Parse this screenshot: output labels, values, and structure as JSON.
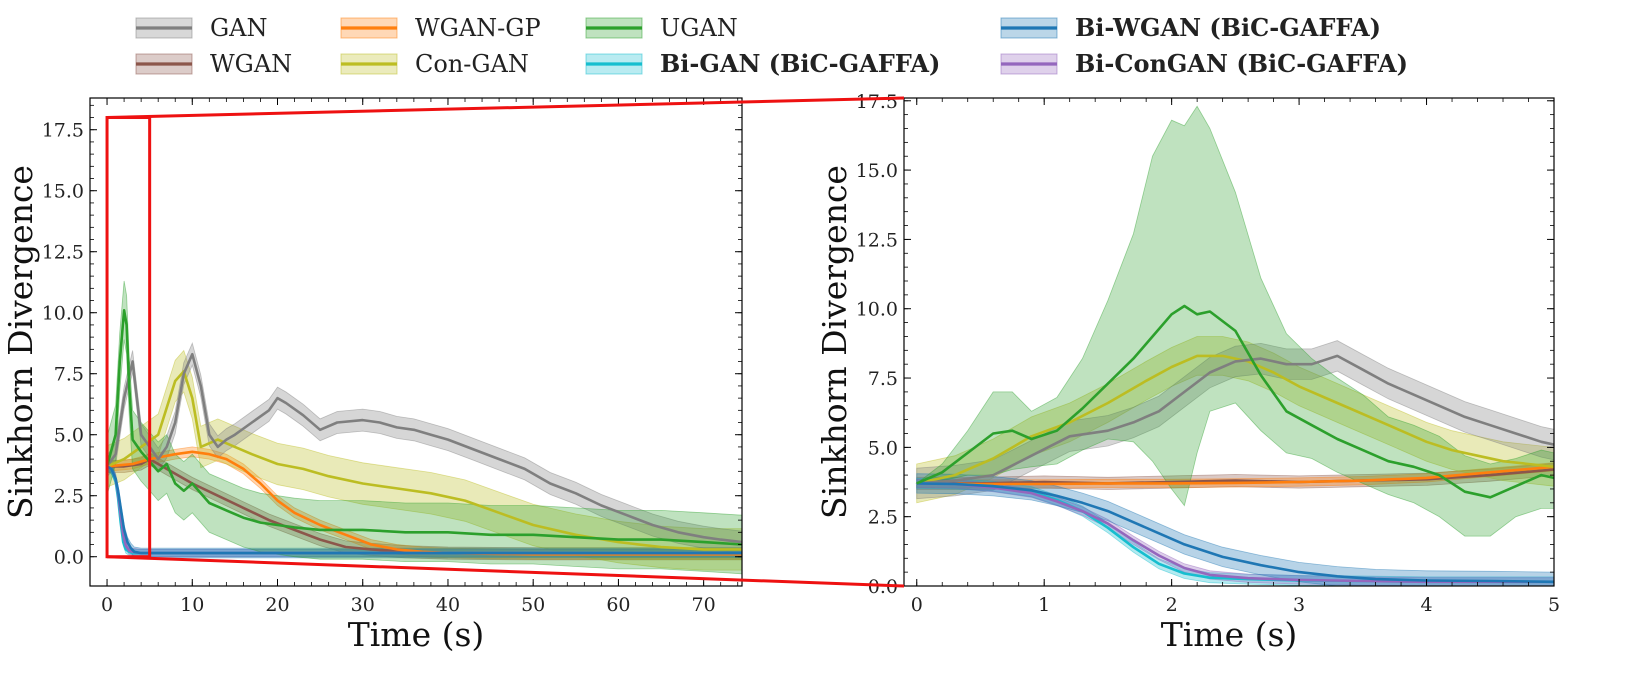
{
  "chart_data": {
    "type": "line",
    "legend": [
      {
        "key": "gan",
        "label": "GAN",
        "color": "#7f7f7f",
        "bold": false
      },
      {
        "key": "wgan",
        "label": "WGAN",
        "color": "#8c564b",
        "bold": false
      },
      {
        "key": "wgangp",
        "label": "WGAN-GP",
        "color": "#ff7f0e",
        "bold": false
      },
      {
        "key": "congan",
        "label": "Con-GAN",
        "color": "#bcbd22",
        "bold": false
      },
      {
        "key": "ugan",
        "label": "UGAN",
        "color": "#2ca02c",
        "bold": false
      },
      {
        "key": "bigan",
        "label": "Bi-GAN (BiC-GAFFA)",
        "color": "#17becf",
        "bold": true
      },
      {
        "key": "biwgan",
        "label": "Bi-WGAN (BiC-GAFFA)",
        "color": "#1f77b4",
        "bold": true
      },
      {
        "key": "bicongan",
        "label": "Bi-ConGAN (BiC-GAFFA)",
        "color": "#9467bd",
        "bold": true
      }
    ],
    "panels": [
      {
        "name": "full",
        "xlabel": "Time (s)",
        "ylabel": "Sinkhorn Divergence",
        "xlim": [
          -2,
          74.5
        ],
        "ylim": [
          -1.2,
          18.8
        ],
        "xticks": [
          0,
          10,
          20,
          30,
          40,
          50,
          60,
          70
        ],
        "xtick_labels": [
          "0",
          "10",
          "20",
          "30",
          "40",
          "50",
          "60",
          "70"
        ],
        "yticks": [
          0,
          2.5,
          5,
          7.5,
          10,
          12.5,
          15,
          17.5
        ],
        "ytick_labels": [
          "0.0",
          "2.5",
          "5.0",
          "7.5",
          "10.0",
          "12.5",
          "15.0",
          "17.5"
        ],
        "zoom_box": {
          "x": [
            0,
            5
          ],
          "y": [
            0,
            18
          ]
        },
        "series": [
          {
            "key": "gan",
            "x": [
              0,
              1,
              2,
              3,
              4,
              5,
              6,
              7,
              8,
              9,
              10,
              11,
              12,
              13,
              14,
              15,
              17,
              19,
              20,
              21,
              23,
              25,
              27,
              30,
              32,
              34,
              36,
              38,
              40,
              43,
              46,
              49,
              52,
              55,
              58,
              61,
              64,
              67,
              70,
              72,
              74.5
            ],
            "y": [
              3.7,
              4.2,
              6.5,
              8.0,
              5.0,
              4.5,
              4.0,
              4.5,
              5.5,
              7.5,
              8.3,
              7.0,
              5.0,
              4.5,
              4.8,
              5.0,
              5.5,
              6.0,
              6.5,
              6.3,
              5.8,
              5.2,
              5.5,
              5.6,
              5.5,
              5.3,
              5.2,
              5.0,
              4.8,
              4.4,
              4.0,
              3.6,
              3.0,
              2.6,
              2.1,
              1.7,
              1.3,
              1.0,
              0.8,
              0.7,
              0.6
            ],
            "band": 0.45
          },
          {
            "key": "wgan",
            "x": [
              0,
              2,
              4,
              5,
              7,
              10,
              13,
              16,
              19,
              22,
              25,
              28,
              31,
              35,
              40,
              50,
              60,
              74.5
            ],
            "y": [
              3.7,
              3.7,
              3.8,
              4.0,
              3.6,
              3.0,
              2.5,
              2.0,
              1.5,
              1.1,
              0.7,
              0.4,
              0.3,
              0.2,
              0.15,
              0.12,
              0.12,
              0.12
            ],
            "band": 0.25
          },
          {
            "key": "wgangp",
            "x": [
              0,
              3,
              5,
              8,
              10,
              12,
              14,
              16,
              18,
              20,
              22,
              25,
              28,
              31,
              34,
              37,
              40,
              45,
              50,
              60,
              74.5
            ],
            "y": [
              3.7,
              3.8,
              4.0,
              4.2,
              4.3,
              4.2,
              4.0,
              3.6,
              3.0,
              2.3,
              1.8,
              1.3,
              0.9,
              0.5,
              0.3,
              0.2,
              0.15,
              0.12,
              0.1,
              0.1,
              0.1
            ],
            "band": 0.2
          },
          {
            "key": "congan",
            "x": [
              0,
              2,
              4,
              6,
              8,
              9,
              10,
              11,
              13,
              15,
              17,
              20,
              23,
              26,
              30,
              34,
              38,
              42,
              46,
              50,
              55,
              60,
              65,
              70,
              74.5
            ],
            "y": [
              3.7,
              4.0,
              4.5,
              5.0,
              7.2,
              7.6,
              6.5,
              4.5,
              4.8,
              4.5,
              4.2,
              3.8,
              3.6,
              3.3,
              3.0,
              2.8,
              2.6,
              2.3,
              1.8,
              1.3,
              0.9,
              0.6,
              0.4,
              0.3,
              0.3
            ],
            "band": 0.85
          },
          {
            "key": "ugan",
            "x": [
              0,
              1,
              1.5,
              2,
              2.3,
              2.6,
              3,
              4,
              5,
              6,
              7,
              8,
              9,
              10,
              12,
              14,
              16,
              18,
              20,
              22,
              25,
              28,
              30,
              35,
              40,
              45,
              50,
              55,
              60,
              65,
              70,
              74.5
            ],
            "y": [
              3.7,
              5.0,
              8.0,
              10.1,
              9.5,
              7.0,
              4.8,
              4.3,
              3.9,
              3.5,
              3.8,
              3.0,
              2.7,
              3.0,
              2.2,
              1.9,
              1.6,
              1.4,
              1.3,
              1.2,
              1.1,
              1.1,
              1.1,
              1.0,
              1.0,
              0.9,
              0.9,
              0.8,
              0.7,
              0.7,
              0.6,
              0.5
            ],
            "band": 1.2
          },
          {
            "key": "bigan",
            "x": [
              0,
              0.5,
              1,
              1.3,
              1.6,
              1.9,
              2.2,
              2.6,
              3,
              4,
              6,
              74.5
            ],
            "y": [
              3.7,
              3.6,
              3.1,
              2.4,
              1.4,
              0.6,
              0.3,
              0.2,
              0.15,
              0.15,
              0.15,
              0.15
            ],
            "band": 0.15
          },
          {
            "key": "biwgan",
            "x": [
              0,
              0.5,
              1,
              1.3,
              1.6,
              2,
              2.4,
              2.8,
              3.2,
              4,
              6,
              74.5
            ],
            "y": [
              3.7,
              3.6,
              3.2,
              2.7,
              2.0,
              1.1,
              0.6,
              0.35,
              0.2,
              0.15,
              0.15,
              0.15
            ],
            "band": 0.2
          },
          {
            "key": "bicongan",
            "x": [
              0,
              0.5,
              1,
              1.3,
              1.6,
              1.9,
              2.2,
              2.6,
              3,
              4,
              6,
              74.5
            ],
            "y": [
              3.7,
              3.6,
              3.2,
              2.6,
              1.7,
              0.9,
              0.45,
              0.25,
              0.2,
              0.15,
              0.15,
              0.15
            ],
            "band": 0.15
          }
        ]
      },
      {
        "name": "zoom",
        "xlabel": "Time (s)",
        "ylabel": "Sinkhorn Divergence",
        "xlim": [
          -0.1,
          5
        ],
        "ylim": [
          0,
          17.6
        ],
        "xticks": [
          0,
          1,
          2,
          3,
          4,
          5
        ],
        "xtick_labels": [
          "0",
          "1",
          "2",
          "3",
          "4",
          "5"
        ],
        "yticks": [
          0,
          2.5,
          5,
          7.5,
          10,
          12.5,
          15,
          17.5
        ],
        "ytick_labels": [
          "0.0",
          "2.5",
          "5.0",
          "7.5",
          "10.0",
          "12.5",
          "15.0",
          "17.5"
        ],
        "series": [
          {
            "key": "gan",
            "x": [
              0,
              0.3,
              0.6,
              0.9,
              1.2,
              1.5,
              1.7,
              1.9,
              2.1,
              2.3,
              2.5,
              2.7,
              2.9,
              3.1,
              3.3,
              3.5,
              3.7,
              3.9,
              4.1,
              4.3,
              4.5,
              4.7,
              4.9,
              5
            ],
            "y": [
              3.7,
              3.8,
              4.0,
              4.7,
              5.4,
              5.6,
              5.9,
              6.3,
              7.0,
              7.7,
              8.1,
              8.2,
              8.0,
              8.0,
              8.3,
              7.8,
              7.3,
              6.9,
              6.5,
              6.1,
              5.8,
              5.5,
              5.2,
              5.1
            ],
            "band": 0.55
          },
          {
            "key": "wgan",
            "x": [
              0,
              0.5,
              1,
              1.5,
              2,
              2.5,
              3,
              3.5,
              4,
              4.5,
              5
            ],
            "y": [
              3.7,
              3.7,
              3.75,
              3.7,
              3.75,
              3.8,
              3.75,
              3.8,
              3.85,
              4.0,
              4.2
            ],
            "band": 0.22
          },
          {
            "key": "wgangp",
            "x": [
              0,
              0.5,
              1,
              1.5,
              2,
              2.5,
              3,
              3.5,
              4,
              4.5,
              5
            ],
            "y": [
              3.7,
              3.68,
              3.68,
              3.7,
              3.7,
              3.72,
              3.75,
              3.8,
              3.9,
              4.1,
              4.3
            ],
            "band": 0.15
          },
          {
            "key": "congan",
            "x": [
              0,
              0.3,
              0.6,
              0.9,
              1.2,
              1.5,
              1.8,
              2,
              2.2,
              2.4,
              2.6,
              2.8,
              3,
              3.2,
              3.4,
              3.6,
              3.8,
              4,
              4.2,
              4.4,
              4.6,
              4.8,
              5
            ],
            "y": [
              3.7,
              4.0,
              4.6,
              5.4,
              5.9,
              6.6,
              7.4,
              7.9,
              8.3,
              8.3,
              8.1,
              7.7,
              7.2,
              6.8,
              6.4,
              6.0,
              5.6,
              5.2,
              4.9,
              4.7,
              4.5,
              4.4,
              4.3
            ],
            "band": 0.7
          },
          {
            "key": "ugan",
            "x": [
              0,
              0.2,
              0.4,
              0.6,
              0.75,
              0.9,
              1.1,
              1.3,
              1.5,
              1.7,
              1.85,
              2,
              2.1,
              2.2,
              2.3,
              2.5,
              2.7,
              2.9,
              3.1,
              3.3,
              3.5,
              3.7,
              3.9,
              4.1,
              4.3,
              4.5,
              4.7,
              4.9,
              5
            ],
            "y": [
              3.7,
              4.1,
              4.8,
              5.5,
              5.6,
              5.3,
              5.6,
              6.4,
              7.3,
              8.2,
              9.0,
              9.8,
              10.1,
              9.8,
              9.9,
              9.2,
              7.6,
              6.3,
              5.8,
              5.3,
              4.9,
              4.5,
              4.3,
              4.0,
              3.4,
              3.2,
              3.6,
              4.0,
              3.9
            ],
            "band_lo": [
              0,
              0.3,
              0.8,
              1.5,
              1.4,
              1.0,
              1.2,
              1.5,
              2.0,
              3.0,
              4.5,
              6.3,
              7.2,
              5.0,
              3.6,
              2.6,
              2.0,
              1.5,
              1.2,
              1.2,
              1.2,
              1.2,
              1.3,
              1.5,
              1.6,
              1.4,
              1.1,
              1.2,
              1.1
            ],
            "band_hi": [
              0,
              0.3,
              0.8,
              1.5,
              1.4,
              1.0,
              1.2,
              1.8,
              3.0,
              4.5,
              6.5,
              7.0,
              6.5,
              7.5,
              6.6,
              5.0,
              3.5,
              2.8,
              2.4,
              2.2,
              2.0,
              1.6,
              1.5,
              1.4,
              1.3,
              1.2,
              1.0,
              0.9,
              0.9
            ]
          },
          {
            "key": "bigan",
            "x": [
              0,
              0.3,
              0.6,
              0.9,
              1.1,
              1.3,
              1.5,
              1.7,
              1.9,
              2.1,
              2.3,
              2.6,
              3,
              3.5,
              4,
              5
            ],
            "y": [
              3.7,
              3.68,
              3.6,
              3.4,
              3.1,
              2.7,
              2.1,
              1.4,
              0.8,
              0.45,
              0.3,
              0.25,
              0.2,
              0.18,
              0.15,
              0.15
            ],
            "band": 0.18
          },
          {
            "key": "biwgan",
            "x": [
              0,
              0.3,
              0.6,
              0.9,
              1.1,
              1.3,
              1.5,
              1.7,
              1.9,
              2.1,
              2.4,
              2.7,
              3,
              3.3,
              3.6,
              4,
              4.5,
              5
            ],
            "y": [
              3.7,
              3.68,
              3.6,
              3.45,
              3.25,
              3.0,
              2.7,
              2.3,
              1.9,
              1.5,
              1.05,
              0.75,
              0.5,
              0.35,
              0.25,
              0.2,
              0.18,
              0.15
            ],
            "band": 0.35
          },
          {
            "key": "bicongan",
            "x": [
              0,
              0.3,
              0.6,
              0.9,
              1.1,
              1.3,
              1.5,
              1.7,
              1.9,
              2.1,
              2.3,
              2.6,
              3,
              3.5,
              4,
              5
            ],
            "y": [
              3.7,
              3.68,
              3.55,
              3.35,
              3.05,
              2.7,
              2.25,
              1.65,
              1.1,
              0.65,
              0.4,
              0.28,
              0.22,
              0.18,
              0.15,
              0.15
            ],
            "band": 0.15
          }
        ]
      }
    ]
  }
}
